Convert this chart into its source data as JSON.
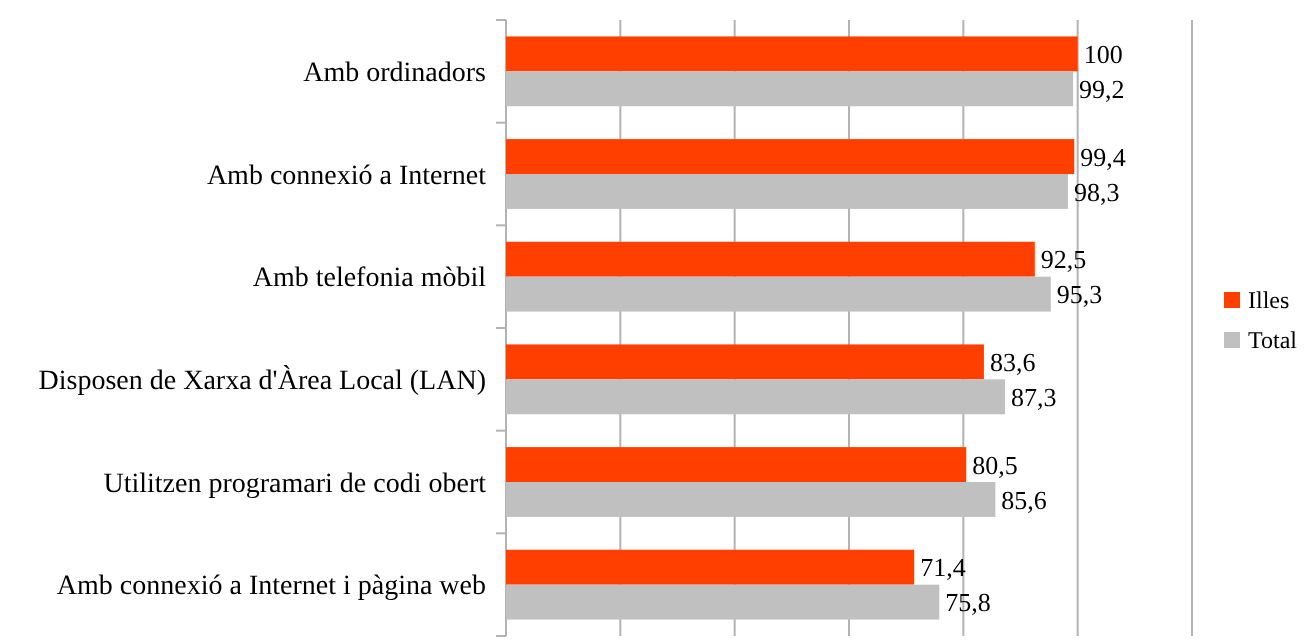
{
  "chart_data": {
    "type": "bar",
    "orientation": "horizontal",
    "categories": [
      "Amb ordinadors",
      "Amb connexió a Internet",
      "Amb telefonia mòbil",
      "Disposen de Xarxa d'Àrea Local (LAN)",
      "Utilitzen programari de codi obert",
      "Amb connexió a Internet i pàgina web"
    ],
    "series": [
      {
        "name": "Illes",
        "color": "#ff3f00",
        "values": [
          100,
          99.4,
          92.5,
          83.6,
          80.5,
          71.4
        ],
        "value_labels": [
          "100",
          "99,4",
          "92,5",
          "83,6",
          "80,5",
          "71,4"
        ]
      },
      {
        "name": "Total",
        "color": "#c0c0c0",
        "values": [
          99.2,
          98.3,
          95.3,
          87.3,
          85.6,
          75.8
        ],
        "value_labels": [
          "99,2",
          "98,3",
          "95,3",
          "87,3",
          "85,6",
          "75,8"
        ]
      }
    ],
    "xlim": [
      0,
      120
    ],
    "xticks": [
      {
        "value": 0,
        "label": null
      },
      {
        "value": 20,
        "label": null
      },
      {
        "value": 40,
        "label": null
      },
      {
        "value": 60,
        "label": null
      },
      {
        "value": 80,
        "label": null
      },
      {
        "value": 100,
        "label": null
      },
      {
        "value": 120,
        "label": null
      }
    ],
    "tick_labels": "y",
    "grid": "x",
    "legend": "right"
  }
}
